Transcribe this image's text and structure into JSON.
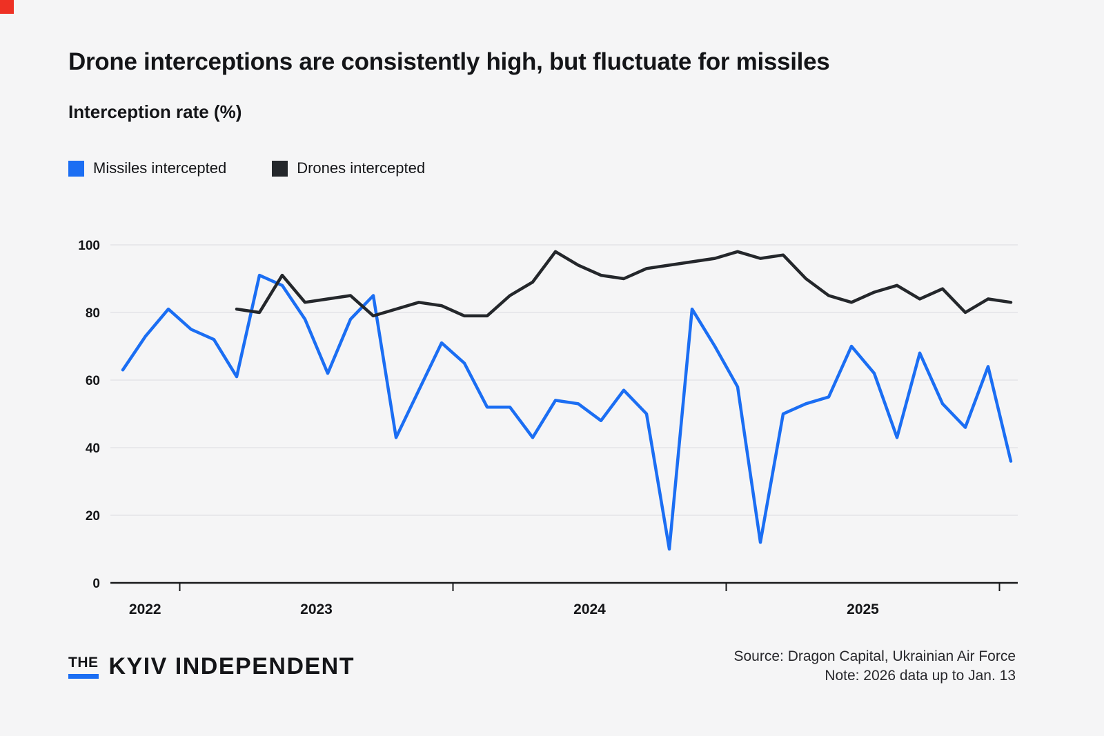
{
  "brand": {
    "corner_color": "#ee3124",
    "blue": "#1b6ef3",
    "dark": "#24272b"
  },
  "page": {
    "title": "Drone interceptions are consistently high, but fluctuate for missiles",
    "subtitle": "Interception rate (%)"
  },
  "legend": {
    "missiles": {
      "label": "Missiles intercepted",
      "color": "#1b6ef3"
    },
    "drones": {
      "label": "Drones intercepted",
      "color": "#24272b"
    }
  },
  "chart_data": {
    "type": "line",
    "title": "Drone interceptions are consistently high, but fluctuate for missiles",
    "ylabel": "Interception rate (%)",
    "xlabel": "",
    "ylim": [
      0,
      100
    ],
    "yticks": [
      0,
      20,
      40,
      60,
      80,
      100
    ],
    "grid": "horizontal",
    "legend_position": "top-left",
    "x_year_labels": [
      "2022",
      "2023",
      "2024",
      "2025"
    ],
    "months": [
      "Oct 2022",
      "Nov 2022",
      "Dec 2022",
      "Jan 2023",
      "Feb 2023",
      "Mar 2023",
      "Apr 2023",
      "May 2023",
      "Jun 2023",
      "Jul 2023",
      "Aug 2023",
      "Sep 2023",
      "Oct 2023",
      "Nov 2023",
      "Dec 2023",
      "Jan 2024",
      "Feb 2024",
      "Mar 2024",
      "Apr 2024",
      "May 2024",
      "Jun 2024",
      "Jul 2024",
      "Aug 2024",
      "Sep 2024",
      "Oct 2024",
      "Nov 2024",
      "Dec 2024",
      "Jan 2025",
      "Feb 2025",
      "Mar 2025",
      "Apr 2025",
      "May 2025",
      "Jun 2025",
      "Jul 2025",
      "Aug 2025",
      "Sep 2025",
      "Oct 2025",
      "Nov 2025",
      "Dec 2025",
      "Jan 2026"
    ],
    "series": [
      {
        "name": "Missiles intercepted",
        "color": "#1b6ef3",
        "start_index": 0,
        "values": [
          63,
          73,
          81,
          75,
          72,
          61,
          91,
          88,
          78,
          62,
          78,
          85,
          43,
          57,
          71,
          65,
          52,
          52,
          43,
          54,
          53,
          48,
          57,
          50,
          10,
          81,
          70,
          58,
          12,
          50,
          53,
          55,
          70,
          62,
          43,
          68,
          53,
          46,
          64,
          36
        ]
      },
      {
        "name": "Drones intercepted",
        "color": "#24272b",
        "start_index": 5,
        "values": [
          81,
          80,
          91,
          83,
          84,
          85,
          79,
          81,
          83,
          82,
          79,
          79,
          85,
          89,
          98,
          94,
          91,
          90,
          93,
          94,
          95,
          96,
          98,
          96,
          97,
          90,
          85,
          83,
          86,
          88,
          84,
          87,
          80,
          84,
          83
        ]
      }
    ]
  },
  "footer": {
    "logo_the": "THE",
    "logo_name": "KYIV INDEPENDENT",
    "source": "Source: Dragon Capital, Ukrainian Air Force",
    "note": "Note: 2026 data up to Jan. 13"
  }
}
